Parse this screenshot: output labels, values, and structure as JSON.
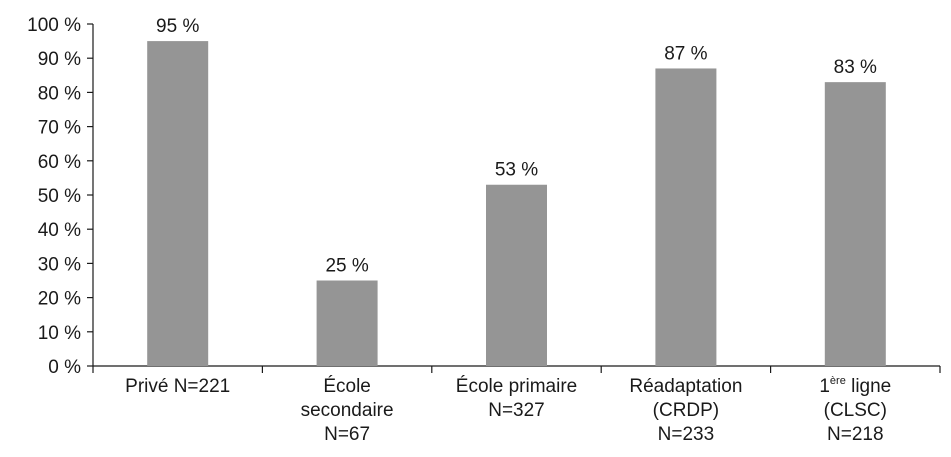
{
  "chart_data": {
    "type": "bar",
    "title": "",
    "xlabel": "",
    "ylabel": "",
    "ylim": [
      0,
      100
    ],
    "y_ticks": [
      "0 %",
      "10 %",
      "20 %",
      "30 %",
      "40 %",
      "50 %",
      "60 %",
      "70 %",
      "80 %",
      "90 %",
      "100 %"
    ],
    "grid": false,
    "bar_color": "#959595",
    "categories": [
      {
        "lines": [
          [
            {
              "t": "Privé N=221"
            }
          ]
        ]
      },
      {
        "lines": [
          [
            {
              "t": "École"
            }
          ],
          [
            {
              "t": "secondaire"
            }
          ],
          [
            {
              "t": "N=67"
            }
          ]
        ]
      },
      {
        "lines": [
          [
            {
              "t": "École primaire"
            }
          ],
          [
            {
              "t": "N=327"
            }
          ]
        ]
      },
      {
        "lines": [
          [
            {
              "t": "Réadaptation"
            }
          ],
          [
            {
              "t": "(CRDP)"
            }
          ],
          [
            {
              "t": "N=233"
            }
          ]
        ]
      },
      {
        "lines": [
          [
            {
              "t": "1"
            },
            {
              "t": "ère",
              "sup": true
            },
            {
              "t": " ligne"
            }
          ],
          [
            {
              "t": "(CLSC)"
            }
          ],
          [
            {
              "t": "N=218"
            }
          ]
        ]
      }
    ],
    "values": [
      95,
      25,
      53,
      87,
      83
    ],
    "value_labels": [
      "95 %",
      "25 %",
      "53 %",
      "87 %",
      "83 %"
    ]
  }
}
